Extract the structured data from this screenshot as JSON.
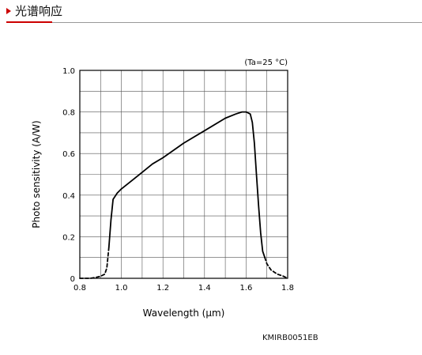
{
  "header": {
    "title": "光谱响应",
    "accent_color": "#cc0000"
  },
  "chart_data": {
    "type": "line",
    "title": "",
    "xlabel": "Wavelength (μm)",
    "ylabel": "Photo sensitivity (A/W)",
    "xlim": [
      0.8,
      1.8
    ],
    "ylim": [
      0,
      1.0
    ],
    "xticks": [
      "0.8",
      "1.0",
      "1.2",
      "1.4",
      "1.6",
      "1.8"
    ],
    "yticks": [
      "0",
      "0.2",
      "0.4",
      "0.6",
      "0.8",
      "1.0"
    ],
    "grid": true,
    "annotation": "(Ta=25 °C)",
    "series": [
      {
        "line_style": "dashed",
        "x": [
          0.8,
          0.85,
          0.88,
          0.9,
          0.92,
          0.93,
          0.94
        ],
        "y": [
          0.0,
          0.0,
          0.005,
          0.01,
          0.02,
          0.05,
          0.15
        ]
      },
      {
        "line_style": "solid",
        "x": [
          0.94,
          0.95,
          0.96,
          0.98,
          1.0,
          1.05,
          1.1,
          1.15,
          1.2,
          1.3,
          1.4,
          1.5,
          1.55,
          1.58,
          1.6,
          1.62,
          1.63,
          1.64,
          1.65,
          1.66,
          1.67,
          1.68,
          1.69
        ],
        "y": [
          0.15,
          0.28,
          0.38,
          0.41,
          0.43,
          0.47,
          0.51,
          0.55,
          0.58,
          0.65,
          0.71,
          0.77,
          0.79,
          0.8,
          0.8,
          0.79,
          0.75,
          0.65,
          0.5,
          0.35,
          0.22,
          0.13,
          0.1
        ]
      },
      {
        "line_style": "dashed",
        "x": [
          1.69,
          1.7,
          1.72,
          1.75,
          1.78,
          1.8
        ],
        "y": [
          0.1,
          0.07,
          0.04,
          0.02,
          0.01,
          0.0
        ]
      }
    ]
  },
  "footer": {
    "code": "KMIRB0051EB"
  }
}
